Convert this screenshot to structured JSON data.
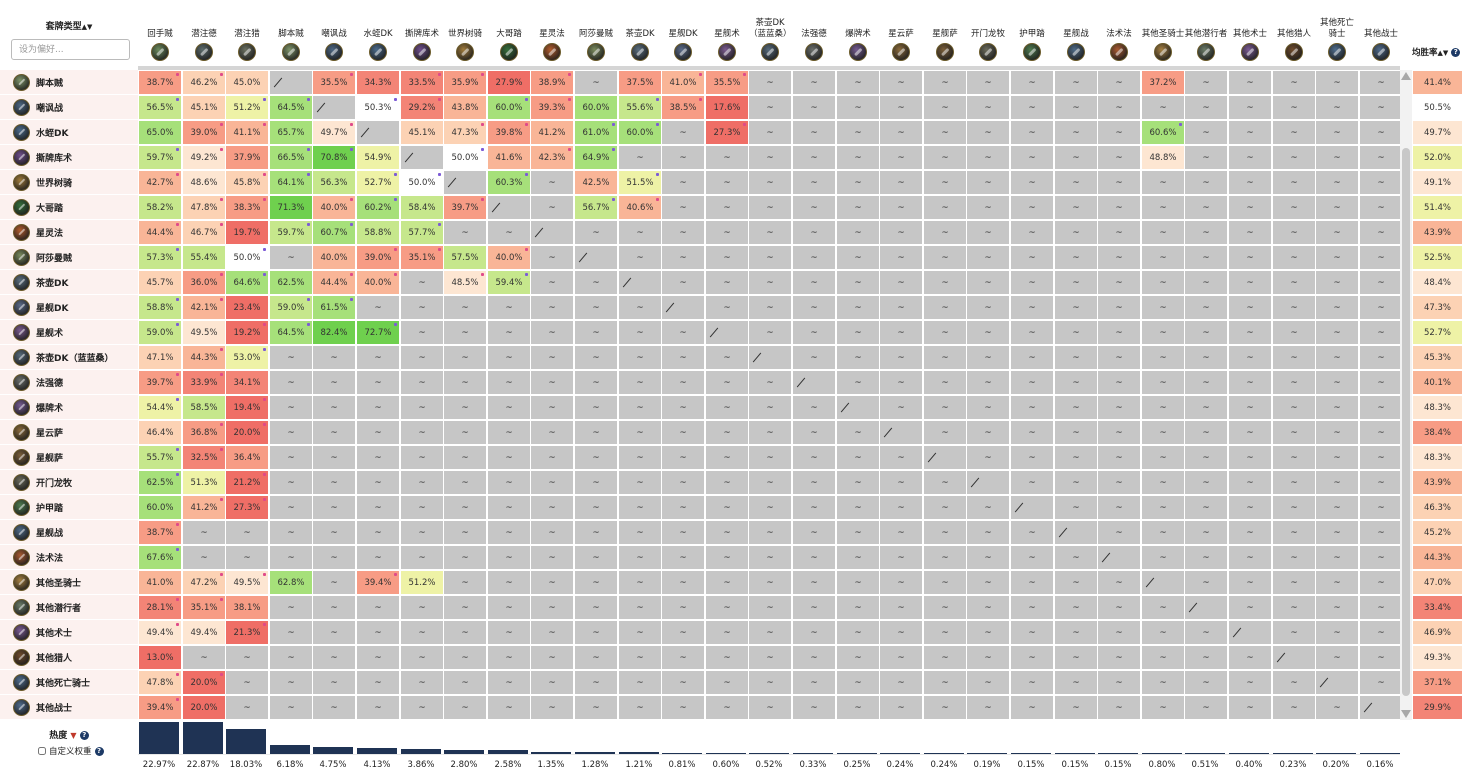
{
  "header": {
    "title": "套牌类型",
    "sort_icon": "sort-arrows-icon",
    "preference_placeholder": "设为偏好...",
    "winrate_label": "均胜率",
    "help_glyph": "?"
  },
  "footer": {
    "popularity_label": "热度",
    "custom_weight_label": "自定义权重"
  },
  "colors": {
    "accent_dark": "#1f3354",
    "row_header_bg": "#fcf1ef",
    "empty_cell": "#c6c6c6"
  },
  "decks": [
    {
      "name": "回手贼",
      "color": "#6b8a5c",
      "icon": "rogue-icon",
      "popularity": "22.97%",
      "pop_value": 22.97
    },
    {
      "name": "潜注德",
      "color": "#5c6b6a",
      "icon": "druid-icon",
      "popularity": "22.87%",
      "pop_value": 22.87
    },
    {
      "name": "潜注猎",
      "color": "#6a7060",
      "icon": "hunter-icon",
      "popularity": "18.03%",
      "pop_value": 18.03
    },
    {
      "name": "脚本贼",
      "color": "#7e9468",
      "icon": "rogue-icon",
      "popularity": "6.18%",
      "pop_value": 6.18
    },
    {
      "name": "嘲讽战",
      "color": "#4c6682",
      "icon": "warrior-icon",
      "popularity": "4.75%",
      "pop_value": 4.75
    },
    {
      "name": "水蛭DK",
      "color": "#4a6a8a",
      "icon": "deathknight-icon",
      "popularity": "4.13%",
      "pop_value": 4.13
    },
    {
      "name": "撕牌库术",
      "color": "#6e4d8a",
      "icon": "warlock-icon",
      "popularity": "3.86%",
      "pop_value": 3.86
    },
    {
      "name": "世界树骑",
      "color": "#a07b3a",
      "icon": "paladin-icon",
      "popularity": "2.80%",
      "pop_value": 2.8
    },
    {
      "name": "大哥踏",
      "color": "#356e3a",
      "icon": "rogue-icon",
      "popularity": "2.58%",
      "pop_value": 2.58
    },
    {
      "name": "星灵法",
      "color": "#b25c2c",
      "icon": "mage-icon",
      "popularity": "1.35%",
      "pop_value": 1.35
    },
    {
      "name": "阿莎曼贼",
      "color": "#7a8a5c",
      "icon": "rogue-icon",
      "popularity": "1.28%",
      "pop_value": 1.28
    },
    {
      "name": "茶壶DK",
      "color": "#5a6e7e",
      "icon": "deathknight-icon",
      "popularity": "1.21%",
      "pop_value": 1.21
    },
    {
      "name": "星舰DK",
      "color": "#5a6a88",
      "icon": "deathknight-icon",
      "popularity": "0.81%",
      "pop_value": 0.81
    },
    {
      "name": "星舰术",
      "color": "#7a5a8e",
      "icon": "warlock-icon",
      "popularity": "0.60%",
      "pop_value": 0.6
    },
    {
      "name": "茶壶DK（蓝蓝桑）",
      "color": "#566a7a",
      "icon": "deathknight-icon",
      "popularity": "0.52%",
      "pop_value": 0.52
    },
    {
      "name": "法强德",
      "color": "#6a6e6a",
      "icon": "druid-icon",
      "popularity": "0.33%",
      "pop_value": 0.33
    },
    {
      "name": "爆牌术",
      "color": "#745a90",
      "icon": "warlock-icon",
      "popularity": "0.25%",
      "pop_value": 0.25
    },
    {
      "name": "星云萨",
      "color": "#8a6a3a",
      "icon": "shaman-icon",
      "popularity": "0.24%",
      "pop_value": 0.24
    },
    {
      "name": "星舰萨",
      "color": "#7a5e38",
      "icon": "shaman-icon",
      "popularity": "0.24%",
      "pop_value": 0.24
    },
    {
      "name": "开门龙牧",
      "color": "#6a6a5a",
      "icon": "priest-icon",
      "popularity": "0.19%",
      "pop_value": 0.19
    },
    {
      "name": "护甲踏",
      "color": "#4e7a4e",
      "icon": "rogue-icon",
      "popularity": "0.15%",
      "pop_value": 0.15
    },
    {
      "name": "星舰战",
      "color": "#4e6a86",
      "icon": "warrior-icon",
      "popularity": "0.15%",
      "pop_value": 0.15
    },
    {
      "name": "法术法",
      "color": "#a85a30",
      "icon": "mage-icon",
      "popularity": "0.15%",
      "pop_value": 0.15
    },
    {
      "name": "其他圣骑士",
      "color": "#a68040",
      "icon": "paladin-icon",
      "popularity": "0.80%",
      "pop_value": 0.8
    },
    {
      "name": "其他潜行者",
      "color": "#6a7a66",
      "icon": "rogue-icon",
      "popularity": "0.51%",
      "pop_value": 0.51
    },
    {
      "name": "其他术士",
      "color": "#7a5a92",
      "icon": "warlock-icon",
      "popularity": "0.40%",
      "pop_value": 0.4
    },
    {
      "name": "其他猎人",
      "color": "#6e4a2a",
      "icon": "hunter-icon",
      "popularity": "0.23%",
      "pop_value": 0.23
    },
    {
      "name": "其他死亡骑士",
      "color": "#4e6c8c",
      "icon": "deathknight-icon",
      "popularity": "0.20%",
      "pop_value": 0.2
    },
    {
      "name": "其他战士",
      "color": "#4e6a8a",
      "icon": "warrior-icon",
      "popularity": "0.16%",
      "pop_value": 0.16
    }
  ],
  "rows": [
    {
      "name": "脚本贼",
      "wr": "41.4%",
      "cells": [
        "38.7%",
        "46.2%",
        "45.0%",
        "/",
        "35.5%",
        "34.3%",
        "33.5%",
        "35.9%",
        "27.9%",
        "38.9%",
        "~",
        "37.5%",
        "41.0%",
        "35.5%",
        "~",
        "~",
        "~",
        "~",
        "~",
        "~",
        "~",
        "~",
        "~",
        "37.2%",
        "~",
        "~",
        "~",
        "~",
        "~"
      ]
    },
    {
      "name": "嘲讽战",
      "wr": "50.5%",
      "cells": [
        "56.5%",
        "45.1%",
        "51.2%",
        "64.5%",
        "/",
        "50.3%",
        "29.2%",
        "43.8%",
        "60.0%",
        "39.3%",
        "60.0%",
        "55.6%",
        "38.5%",
        "17.6%",
        "~",
        "~",
        "~",
        "~",
        "~",
        "~",
        "~",
        "~",
        "~",
        "~",
        "~",
        "~",
        "~",
        "~",
        "~"
      ]
    },
    {
      "name": "水蛭DK",
      "wr": "49.7%",
      "cells": [
        "65.0%",
        "39.0%",
        "41.1%",
        "65.7%",
        "49.7%",
        "/",
        "45.1%",
        "47.3%",
        "39.8%",
        "41.2%",
        "61.0%",
        "60.0%",
        "~",
        "27.3%",
        "~",
        "~",
        "~",
        "~",
        "~",
        "~",
        "~",
        "~",
        "~",
        "60.6%",
        "~",
        "~",
        "~",
        "~",
        "~"
      ]
    },
    {
      "name": "撕牌库术",
      "wr": "52.0%",
      "cells": [
        "59.7%",
        "49.2%",
        "37.9%",
        "66.5%",
        "70.8%",
        "54.9%",
        "/",
        "50.0%",
        "41.6%",
        "42.3%",
        "64.9%",
        "~",
        "~",
        "~",
        "~",
        "~",
        "~",
        "~",
        "~",
        "~",
        "~",
        "~",
        "~",
        "48.8%",
        "~",
        "~",
        "~",
        "~",
        "~"
      ]
    },
    {
      "name": "世界树骑",
      "wr": "49.1%",
      "cells": [
        "42.7%",
        "48.6%",
        "45.8%",
        "64.1%",
        "56.3%",
        "52.7%",
        "50.0%",
        "/",
        "60.3%",
        "~",
        "42.5%",
        "51.5%",
        "~",
        "~",
        "~",
        "~",
        "~",
        "~",
        "~",
        "~",
        "~",
        "~",
        "~",
        "~",
        "~",
        "~",
        "~",
        "~",
        "~"
      ]
    },
    {
      "name": "大哥踏",
      "wr": "51.4%",
      "cells": [
        "58.2%",
        "47.8%",
        "38.3%",
        "71.3%",
        "40.0%",
        "60.2%",
        "58.4%",
        "39.7%",
        "/",
        "~",
        "56.7%",
        "40.6%",
        "~",
        "~",
        "~",
        "~",
        "~",
        "~",
        "~",
        "~",
        "~",
        "~",
        "~",
        "~",
        "~",
        "~",
        "~",
        "~",
        "~"
      ]
    },
    {
      "name": "星灵法",
      "wr": "43.9%",
      "cells": [
        "44.4%",
        "46.7%",
        "19.7%",
        "59.7%",
        "60.7%",
        "58.8%",
        "57.7%",
        "~",
        "~",
        "/",
        "~",
        "~",
        "~",
        "~",
        "~",
        "~",
        "~",
        "~",
        "~",
        "~",
        "~",
        "~",
        "~",
        "~",
        "~",
        "~",
        "~",
        "~",
        "~"
      ]
    },
    {
      "name": "阿莎曼贼",
      "wr": "52.5%",
      "cells": [
        "57.3%",
        "55.4%",
        "50.0%",
        "~",
        "40.0%",
        "39.0%",
        "35.1%",
        "57.5%",
        "40.0%",
        "~",
        "/",
        "~",
        "~",
        "~",
        "~",
        "~",
        "~",
        "~",
        "~",
        "~",
        "~",
        "~",
        "~",
        "~",
        "~",
        "~",
        "~",
        "~",
        "~"
      ]
    },
    {
      "name": "茶壶DK",
      "wr": "48.4%",
      "cells": [
        "45.7%",
        "36.0%",
        "64.6%",
        "62.5%",
        "44.4%",
        "40.0%",
        "~",
        "48.5%",
        "59.4%",
        "~",
        "~",
        "/",
        "~",
        "~",
        "~",
        "~",
        "~",
        "~",
        "~",
        "~",
        "~",
        "~",
        "~",
        "~",
        "~",
        "~",
        "~",
        "~",
        "~"
      ]
    },
    {
      "name": "星舰DK",
      "wr": "47.3%",
      "cells": [
        "58.8%",
        "42.1%",
        "23.4%",
        "59.0%",
        "61.5%",
        "~",
        "~",
        "~",
        "~",
        "~",
        "~",
        "~",
        "/",
        "~",
        "~",
        "~",
        "~",
        "~",
        "~",
        "~",
        "~",
        "~",
        "~",
        "~",
        "~",
        "~",
        "~",
        "~",
        "~"
      ]
    },
    {
      "name": "星舰术",
      "wr": "52.7%",
      "cells": [
        "59.0%",
        "49.5%",
        "19.2%",
        "64.5%",
        "82.4%",
        "72.7%",
        "~",
        "~",
        "~",
        "~",
        "~",
        "~",
        "~",
        "/",
        "~",
        "~",
        "~",
        "~",
        "~",
        "~",
        "~",
        "~",
        "~",
        "~",
        "~",
        "~",
        "~",
        "~",
        "~"
      ]
    },
    {
      "name": "茶壶DK（蓝蓝桑）",
      "wr": "45.3%",
      "cells": [
        "47.1%",
        "44.3%",
        "53.0%",
        "~",
        "~",
        "~",
        "~",
        "~",
        "~",
        "~",
        "~",
        "~",
        "~",
        "~",
        "/",
        "~",
        "~",
        "~",
        "~",
        "~",
        "~",
        "~",
        "~",
        "~",
        "~",
        "~",
        "~",
        "~",
        "~"
      ]
    },
    {
      "name": "法强德",
      "wr": "40.1%",
      "cells": [
        "39.7%",
        "33.9%",
        "34.1%",
        "~",
        "~",
        "~",
        "~",
        "~",
        "~",
        "~",
        "~",
        "~",
        "~",
        "~",
        "~",
        "/",
        "~",
        "~",
        "~",
        "~",
        "~",
        "~",
        "~",
        "~",
        "~",
        "~",
        "~",
        "~",
        "~"
      ]
    },
    {
      "name": "爆牌术",
      "wr": "48.3%",
      "cells": [
        "54.4%",
        "58.5%",
        "19.4%",
        "~",
        "~",
        "~",
        "~",
        "~",
        "~",
        "~",
        "~",
        "~",
        "~",
        "~",
        "~",
        "~",
        "/",
        "~",
        "~",
        "~",
        "~",
        "~",
        "~",
        "~",
        "~",
        "~",
        "~",
        "~",
        "~"
      ]
    },
    {
      "name": "星云萨",
      "wr": "38.4%",
      "cells": [
        "46.4%",
        "36.8%",
        "20.0%",
        "~",
        "~",
        "~",
        "~",
        "~",
        "~",
        "~",
        "~",
        "~",
        "~",
        "~",
        "~",
        "~",
        "~",
        "/",
        "~",
        "~",
        "~",
        "~",
        "~",
        "~",
        "~",
        "~",
        "~",
        "~",
        "~"
      ]
    },
    {
      "name": "星舰萨",
      "wr": "48.3%",
      "cells": [
        "55.7%",
        "32.5%",
        "36.4%",
        "~",
        "~",
        "~",
        "~",
        "~",
        "~",
        "~",
        "~",
        "~",
        "~",
        "~",
        "~",
        "~",
        "~",
        "~",
        "/",
        "~",
        "~",
        "~",
        "~",
        "~",
        "~",
        "~",
        "~",
        "~",
        "~"
      ]
    },
    {
      "name": "开门龙牧",
      "wr": "43.9%",
      "cells": [
        "62.5%",
        "51.3%",
        "21.2%",
        "~",
        "~",
        "~",
        "~",
        "~",
        "~",
        "~",
        "~",
        "~",
        "~",
        "~",
        "~",
        "~",
        "~",
        "~",
        "~",
        "/",
        "~",
        "~",
        "~",
        "~",
        "~",
        "~",
        "~",
        "~",
        "~"
      ]
    },
    {
      "name": "护甲踏",
      "wr": "46.3%",
      "cells": [
        "60.0%",
        "41.2%",
        "27.3%",
        "~",
        "~",
        "~",
        "~",
        "~",
        "~",
        "~",
        "~",
        "~",
        "~",
        "~",
        "~",
        "~",
        "~",
        "~",
        "~",
        "~",
        "/",
        "~",
        "~",
        "~",
        "~",
        "~",
        "~",
        "~",
        "~"
      ]
    },
    {
      "name": "星舰战",
      "wr": "45.2%",
      "cells": [
        "38.7%",
        "~",
        "~",
        "~",
        "~",
        "~",
        "~",
        "~",
        "~",
        "~",
        "~",
        "~",
        "~",
        "~",
        "~",
        "~",
        "~",
        "~",
        "~",
        "~",
        "~",
        "/",
        "~",
        "~",
        "~",
        "~",
        "~",
        "~",
        "~"
      ]
    },
    {
      "name": "法术法",
      "wr": "44.3%",
      "cells": [
        "67.6%",
        "~",
        "~",
        "~",
        "~",
        "~",
        "~",
        "~",
        "~",
        "~",
        "~",
        "~",
        "~",
        "~",
        "~",
        "~",
        "~",
        "~",
        "~",
        "~",
        "~",
        "~",
        "/",
        "~",
        "~",
        "~",
        "~",
        "~",
        "~"
      ]
    },
    {
      "name": "其他圣骑士",
      "wr": "47.0%",
      "cells": [
        "41.0%",
        "47.2%",
        "49.5%",
        "62.8%",
        "~",
        "39.4%",
        "51.2%",
        "~",
        "~",
        "~",
        "~",
        "~",
        "~",
        "~",
        "~",
        "~",
        "~",
        "~",
        "~",
        "~",
        "~",
        "~",
        "~",
        "/",
        "~",
        "~",
        "~",
        "~",
        "~"
      ]
    },
    {
      "name": "其他潜行者",
      "wr": "33.4%",
      "cells": [
        "28.1%",
        "35.1%",
        "38.1%",
        "~",
        "~",
        "~",
        "~",
        "~",
        "~",
        "~",
        "~",
        "~",
        "~",
        "~",
        "~",
        "~",
        "~",
        "~",
        "~",
        "~",
        "~",
        "~",
        "~",
        "~",
        "/",
        "~",
        "~",
        "~",
        "~"
      ]
    },
    {
      "name": "其他术士",
      "wr": "46.9%",
      "cells": [
        "49.4%",
        "49.4%",
        "21.3%",
        "~",
        "~",
        "~",
        "~",
        "~",
        "~",
        "~",
        "~",
        "~",
        "~",
        "~",
        "~",
        "~",
        "~",
        "~",
        "~",
        "~",
        "~",
        "~",
        "~",
        "~",
        "~",
        "/",
        "~",
        "~",
        "~"
      ]
    },
    {
      "name": "其他猎人",
      "wr": "49.3%",
      "cells": [
        "13.0%",
        "~",
        "~",
        "~",
        "~",
        "~",
        "~",
        "~",
        "~",
        "~",
        "~",
        "~",
        "~",
        "~",
        "~",
        "~",
        "~",
        "~",
        "~",
        "~",
        "~",
        "~",
        "~",
        "~",
        "~",
        "~",
        "/",
        "~",
        "~"
      ]
    },
    {
      "name": "其他死亡骑士",
      "wr": "37.1%",
      "cells": [
        "47.8%",
        "20.0%",
        "~",
        "~",
        "~",
        "~",
        "~",
        "~",
        "~",
        "~",
        "~",
        "~",
        "~",
        "~",
        "~",
        "~",
        "~",
        "~",
        "~",
        "~",
        "~",
        "~",
        "~",
        "~",
        "~",
        "~",
        "~",
        "/",
        "~"
      ]
    },
    {
      "name": "其他战士",
      "wr": "29.9%",
      "cells": [
        "39.4%",
        "20.0%",
        "~",
        "~",
        "~",
        "~",
        "~",
        "~",
        "~",
        "~",
        "~",
        "~",
        "~",
        "~",
        "~",
        "~",
        "~",
        "~",
        "~",
        "~",
        "~",
        "~",
        "~",
        "~",
        "~",
        "~",
        "~",
        "~",
        "/"
      ]
    }
  ]
}
